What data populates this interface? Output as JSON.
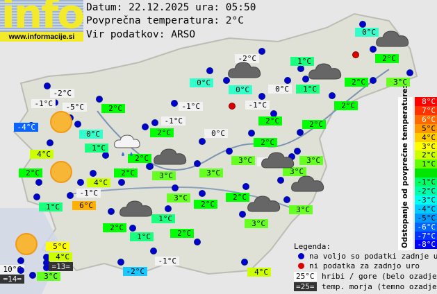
{
  "logo": {
    "text": "info",
    "url": "www.informacije.si"
  },
  "header": {
    "date_line": "Datum: 22.12.2025 ura: 05:50",
    "avg_line": "Povprečna temperatura: 2°C",
    "source_line": "Vir podatkov: ARSO"
  },
  "temperature_colors": {
    "-5": "#0a64ff",
    "-4": "#0a64ff",
    "-3": "#00aaff",
    "-2": "#1ac8ff",
    "-1": "#f2f2f2",
    "0": "#33ffcc",
    "1": "#1aff80",
    "2": "#00ff00",
    "3": "#66ff22",
    "4": "#ccff00",
    "5": "#ffff00",
    "6": "#ffb000",
    "10": "#ffffff"
  },
  "stations": [
    {
      "label": "-2°C",
      "type": "mountain",
      "status": "ok"
    },
    {
      "label": "-1°C",
      "type": "mountain",
      "status": "ok"
    },
    {
      "label": "-5°C",
      "type": "mountain",
      "status": "ok"
    },
    {
      "label": "-4°C",
      "type": "normal",
      "temp": -4,
      "status": "ok"
    },
    {
      "label": "0°C",
      "type": "normal",
      "temp": 0,
      "status": "ok"
    },
    {
      "label": "2°C",
      "type": "normal",
      "temp": 2,
      "status": "ok"
    },
    {
      "label": "4°C",
      "type": "normal",
      "temp": 4,
      "status": "ok"
    },
    {
      "label": "1°C",
      "type": "normal",
      "temp": 1,
      "status": "ok"
    },
    {
      "label": "2°C",
      "type": "normal",
      "temp": 2,
      "status": "ok"
    },
    {
      "label": "2°C",
      "type": "normal",
      "temp": 2,
      "status": "ok"
    },
    {
      "label": "4°C",
      "type": "normal",
      "temp": 4,
      "status": "ok"
    },
    {
      "label": "-1°C",
      "type": "mountain",
      "status": "ok"
    },
    {
      "label": "6°C",
      "type": "normal",
      "temp": 6,
      "status": "ok"
    },
    {
      "label": "1°C",
      "type": "normal",
      "temp": 1,
      "status": "ok"
    },
    {
      "label": "2°C",
      "type": "normal",
      "temp": 2,
      "status": "ok"
    },
    {
      "label": "5°C",
      "type": "normal",
      "temp": 5,
      "status": "ok"
    },
    {
      "label": "4°C",
      "type": "normal",
      "temp": 4,
      "status": "ok"
    },
    {
      "label": "=13=",
      "type": "sea",
      "status": "ok"
    },
    {
      "label": "10°C",
      "type": "mountain",
      "status": "ok"
    },
    {
      "label": "=14=",
      "type": "sea",
      "status": "ok"
    },
    {
      "label": "3°C",
      "type": "normal",
      "temp": 3,
      "status": "ok"
    },
    {
      "label": "-2°C",
      "type": "normal",
      "temp": -2,
      "status": "ok"
    },
    {
      "label": "2°C",
      "type": "normal",
      "temp": 2,
      "status": "ok"
    },
    {
      "label": "1°C",
      "type": "normal",
      "temp": 1,
      "status": "ok"
    },
    {
      "label": "-2°C",
      "type": "mountain",
      "status": "ok"
    },
    {
      "label": "0°C",
      "type": "normal",
      "temp": 0,
      "status": "ok"
    },
    {
      "label": "0°C",
      "type": "normal",
      "temp": 0,
      "status": "ok"
    },
    {
      "label": "-1°C",
      "type": "mountain",
      "status": "ok"
    },
    {
      "label": "0°C",
      "type": "mountain",
      "status": "ok"
    },
    {
      "label": "-1°C",
      "type": "mountain",
      "status": "ok"
    },
    {
      "label": "-1°C",
      "type": "mountain",
      "status": "ok"
    },
    {
      "label": "2°C",
      "type": "normal",
      "temp": 2,
      "status": "ok"
    },
    {
      "label": "0°C",
      "type": "mountain",
      "status": "ok"
    },
    {
      "label": "2°C",
      "type": "normal",
      "temp": 2,
      "status": "ok"
    },
    {
      "label": "2°C",
      "type": "normal",
      "temp": 2,
      "status": "ok"
    },
    {
      "label": "0°C",
      "type": "normal",
      "temp": 0,
      "status": "ok"
    },
    {
      "label": "2°C",
      "type": "normal",
      "temp": 2,
      "status": "ok"
    },
    {
      "label": "3°C",
      "type": "normal",
      "temp": 3,
      "status": "ok"
    },
    {
      "label": "2°C",
      "type": "normal",
      "temp": 2,
      "status": "ok"
    },
    {
      "label": "1°C",
      "type": "normal",
      "temp": 1,
      "status": "ok"
    },
    {
      "label": "1°C",
      "type": "normal",
      "temp": 1,
      "status": "ok"
    },
    {
      "label": "2°C",
      "type": "normal",
      "temp": 2,
      "status": "ok"
    },
    {
      "label": "2°C",
      "type": "normal",
      "temp": 2,
      "status": "ok"
    },
    {
      "label": "3°C",
      "type": "normal",
      "temp": 3,
      "status": "ok"
    },
    {
      "label": "-2°C",
      "type": "mountain",
      "status": "ok"
    },
    {
      "label": "3°C",
      "type": "normal",
      "temp": 3,
      "status": "ok"
    },
    {
      "label": "3°C",
      "type": "normal",
      "temp": 3,
      "status": "ok"
    },
    {
      "label": "3°C",
      "type": "normal",
      "temp": 3,
      "status": "ok"
    },
    {
      "label": "3°C",
      "type": "normal",
      "temp": 3,
      "status": "ok"
    },
    {
      "label": "3°C",
      "type": "normal",
      "temp": 3,
      "status": "ok"
    },
    {
      "label": "2°C",
      "type": "normal",
      "temp": 2,
      "status": "ok"
    },
    {
      "label": "2°C",
      "type": "normal",
      "temp": 2,
      "status": "ok"
    },
    {
      "label": "3°C",
      "type": "normal",
      "temp": 3,
      "status": "ok"
    },
    {
      "label": "1°C",
      "type": "normal",
      "temp": 1,
      "status": "ok"
    },
    {
      "label": "3°C",
      "type": "normal",
      "temp": 3,
      "status": "ok"
    },
    {
      "label": "2°C",
      "type": "normal",
      "temp": 2,
      "status": "ok"
    },
    {
      "label": "-1°C",
      "type": "mountain",
      "status": "ok"
    },
    {
      "label": "4°C",
      "type": "normal",
      "temp": 4,
      "status": "ok"
    },
    {
      "label": "",
      "type": "none",
      "status": "missing"
    },
    {
      "label": "",
      "type": "none",
      "status": "missing"
    }
  ],
  "weather_icons": [
    "sun",
    "sun",
    "sun",
    "cloud",
    "cloud",
    "cloud",
    "cloud",
    "cloud",
    "cloud",
    "cloud",
    "cloud",
    "cloud-rain"
  ],
  "scale": {
    "title": "Odstopanje od povprečne temperature:",
    "rows": [
      {
        "label": "8°C",
        "color": "#ff0000",
        "text": "#ffffff"
      },
      {
        "label": "7°C",
        "color": "#ff3300",
        "text": "#ffffff"
      },
      {
        "label": "6°C",
        "color": "#ff6a00",
        "text": "#ffffff"
      },
      {
        "label": "5°C",
        "color": "#ff9900",
        "text": "#000000"
      },
      {
        "label": "4°C",
        "color": "#ffcc00",
        "text": "#000000"
      },
      {
        "label": "3°C",
        "color": "#ffff00",
        "text": "#000000"
      },
      {
        "label": "2°C",
        "color": "#ccff00",
        "text": "#000000"
      },
      {
        "label": "1°C",
        "color": "#66ff00",
        "text": "#000000"
      },
      {
        "label": "",
        "color": "#00e600",
        "text": "#000000"
      },
      {
        "label": "-1°C",
        "color": "#00ff66",
        "text": "#000000"
      },
      {
        "label": "-2°C",
        "color": "#00ffaa",
        "text": "#000000"
      },
      {
        "label": "-3°C",
        "color": "#00ffee",
        "text": "#000000"
      },
      {
        "label": "-4°C",
        "color": "#00ccff",
        "text": "#000000"
      },
      {
        "label": "-5°C",
        "color": "#0099ff",
        "text": "#000000"
      },
      {
        "label": "-6°C",
        "color": "#0066ff",
        "text": "#ffffff"
      },
      {
        "label": "-7°C",
        "color": "#0033ff",
        "text": "#ffffff"
      },
      {
        "label": "-8°C",
        "color": "#0000ff",
        "text": "#ffffff"
      }
    ]
  },
  "legend": {
    "title": "Legenda:",
    "available": "na voljo so podatki zadnje ure",
    "missing": "ni podatka za zadnjo uro",
    "mountain_sample": "25°C",
    "mountain_text": "hribi / gore (belo ozadje)",
    "sea_sample": "=25=",
    "sea_text": "temp. morja (temno ozadje)"
  }
}
